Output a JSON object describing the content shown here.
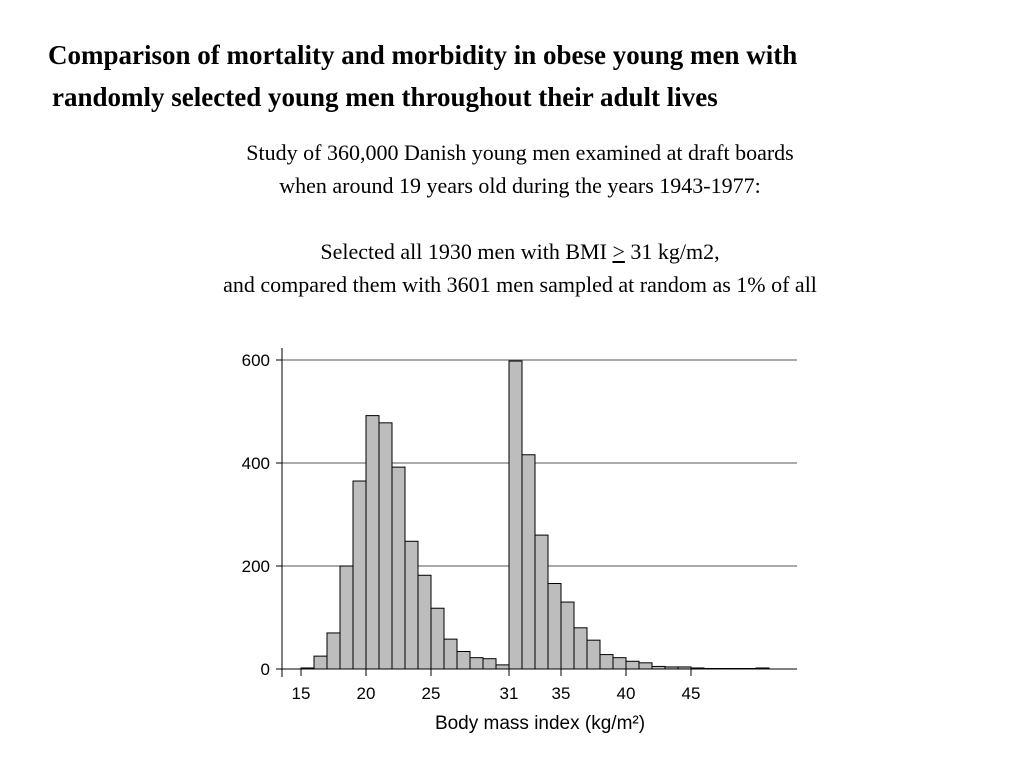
{
  "title": {
    "line1": "Comparison of mortality and morbidity in obese young men with",
    "line2": "randomly selected young men throughout their adult lives"
  },
  "description": {
    "line1": "Study of 360,000 Danish young men examined at draft boards",
    "line2": "when around 19 years old during the years 1943-1977:",
    "line3_before": "Selected all 1930 men with BMI ",
    "line3_symbol": ">",
    "line3_after": " 31 kg/m2,",
    "line4": "and compared them with 3601 men sampled at random as 1% of all"
  },
  "chart_data": {
    "type": "bar",
    "xlabel": "Body mass index (kg/m²)",
    "ylabel": "",
    "xlim": [
      14,
      52
    ],
    "ylim": [
      0,
      600
    ],
    "yticks": [
      0,
      200,
      400,
      600
    ],
    "xticks": [
      15,
      20,
      25,
      31,
      35,
      40,
      45
    ],
    "grid": "horizontal",
    "bin_width": 1,
    "bins_left_edge": [
      15,
      16,
      17,
      18,
      19,
      20,
      21,
      22,
      23,
      24,
      25,
      26,
      27,
      28,
      29,
      30,
      31,
      32,
      33,
      34,
      35,
      36,
      37,
      38,
      39,
      40,
      41,
      42,
      43,
      44,
      45,
      46,
      47,
      48,
      49,
      50
    ],
    "values": [
      2,
      25,
      70,
      200,
      365,
      492,
      478,
      392,
      248,
      182,
      118,
      58,
      34,
      22,
      20,
      8,
      598,
      416,
      260,
      166,
      130,
      80,
      56,
      28,
      22,
      15,
      12,
      5,
      4,
      4,
      2,
      1,
      1,
      1,
      1,
      2
    ]
  }
}
